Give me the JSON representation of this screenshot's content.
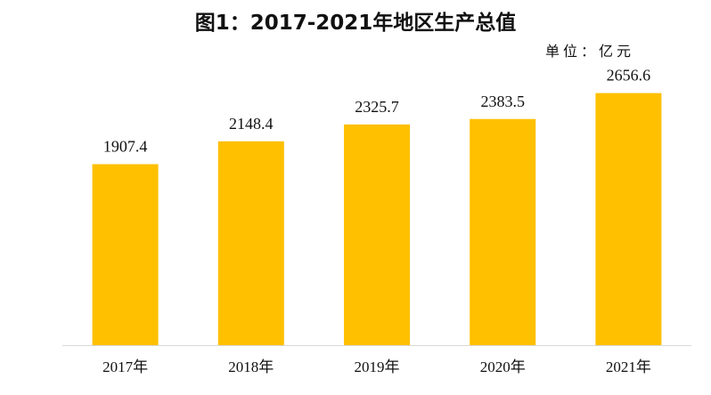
{
  "chart_data": {
    "type": "bar",
    "title": "图1：2017-2021年地区生产总值",
    "unit_label": "单位：亿元",
    "categories": [
      "2017年",
      "2018年",
      "2019年",
      "2020年",
      "2021年"
    ],
    "values": [
      1907.4,
      2148.4,
      2325.7,
      2383.5,
      2656.6
    ],
    "value_labels": [
      "1907.4",
      "2148.4",
      "2325.7",
      "2383.5",
      "2656.6"
    ],
    "ylim": [
      0,
      2700
    ],
    "grid": false,
    "bar_color": "#FFC000"
  }
}
